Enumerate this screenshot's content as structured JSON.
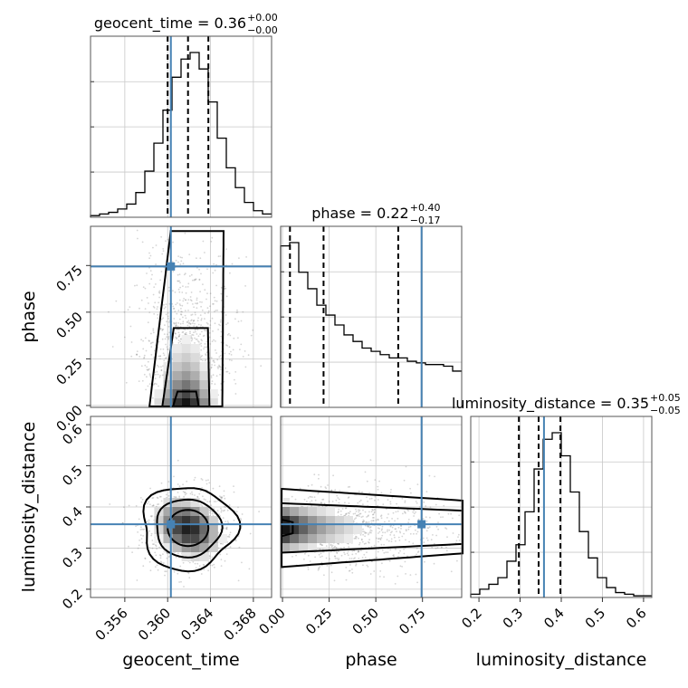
{
  "chart_data": {
    "type": "corner",
    "parameters": [
      "geocent_time",
      "phase",
      "luminosity_distance"
    ],
    "titles": [
      {
        "param": "geocent_time",
        "prefix": "geocent_time = 0.36",
        "plus": "+0.00",
        "minus": "−0.00"
      },
      {
        "param": "phase",
        "prefix": "phase = 0.22",
        "plus": "+0.40",
        "minus": "−0.17"
      },
      {
        "param": "luminosity_distance",
        "prefix": "luminosity_distance = 0.35",
        "plus": "+0.05",
        "minus": "−0.05"
      }
    ],
    "truths": {
      "geocent_time": 0.3603,
      "phase": 0.745,
      "luminosity_distance": 0.358
    },
    "quantiles": {
      "geocent_time": [
        0.36,
        0.3619,
        0.3638
      ],
      "phase": [
        0.04,
        0.22,
        0.62
      ],
      "luminosity_distance": [
        0.297,
        0.345,
        0.398
      ]
    },
    "ranges": {
      "geocent_time": [
        0.3528,
        0.3697
      ],
      "phase": [
        -0.01,
        0.96
      ],
      "luminosity_distance": [
        0.18,
        0.62
      ]
    },
    "ticks": {
      "geocent_time": [
        "0.356",
        "0.360",
        "0.364",
        "0.368"
      ],
      "phase": [
        "0.00",
        "0.25",
        "0.50",
        "0.75"
      ],
      "luminosity_distance": [
        "0.2",
        "0.3",
        "0.4",
        "0.5",
        "0.6"
      ]
    },
    "hist_geocent_time": {
      "edges_start": 0.3528,
      "bin_width": 0.000845,
      "counts": [
        1,
        2,
        3,
        5,
        8,
        15,
        28,
        45,
        65,
        85,
        96,
        100,
        90,
        70,
        48,
        30,
        18,
        9,
        4,
        2
      ]
    },
    "hist_phase": {
      "edges_start": -0.01,
      "bin_width": 0.0485,
      "counts": [
        98,
        100,
        82,
        72,
        62,
        56,
        50,
        44,
        40,
        36,
        34,
        32,
        30,
        30,
        28,
        27,
        26,
        26,
        25,
        22
      ]
    },
    "hist_luminosity_distance": {
      "edges_start": 0.18,
      "bin_width": 0.022,
      "counts": [
        2,
        5,
        8,
        12,
        22,
        32,
        52,
        78,
        96,
        100,
        86,
        64,
        40,
        24,
        12,
        6,
        3,
        2,
        1,
        1
      ]
    },
    "grid": true
  }
}
